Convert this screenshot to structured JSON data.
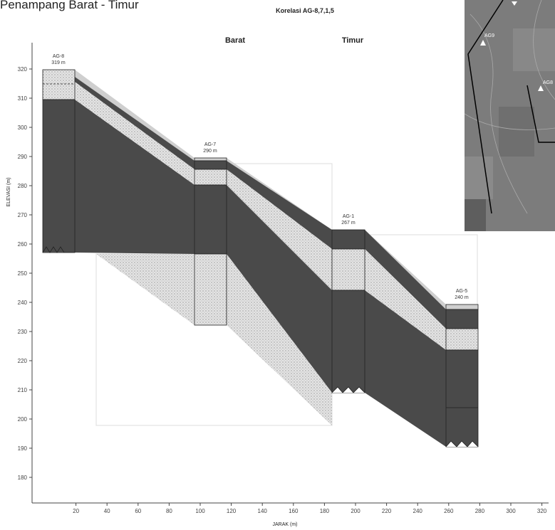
{
  "title": "Penampang Barat - Timur",
  "subtitle": "Korelasi AG-8,7,1,5",
  "labels": {
    "west": "Barat",
    "east": "Timur"
  },
  "y_axis": {
    "title": "ELEVASI (m)",
    "ticks": [
      320,
      310,
      300,
      290,
      280,
      270,
      260,
      250,
      240,
      230,
      220,
      210,
      200,
      190,
      180
    ]
  },
  "x_axis": {
    "title": "JARAK (m)",
    "ticks": [
      20,
      40,
      60,
      80,
      100,
      120,
      140,
      160,
      180,
      200,
      220,
      240,
      260,
      280,
      300,
      320
    ]
  },
  "wells": [
    {
      "name": "AG-8",
      "elevation": "319 m"
    },
    {
      "name": "AG-7",
      "elevation": "290 m"
    },
    {
      "name": "AG-1",
      "elevation": "267 m"
    },
    {
      "name": "AG-5",
      "elevation": "240 m"
    }
  ],
  "map": {
    "labels": [
      "AG9",
      "AG8"
    ]
  }
}
